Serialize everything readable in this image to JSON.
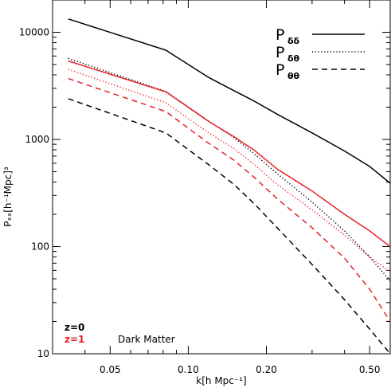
{
  "chart_data": {
    "type": "line",
    "title": "",
    "xlabel": "k[h Mpc⁻¹]",
    "ylabel": "Pₓₓ[h⁻¹Mpc]³",
    "xscale": "log",
    "yscale": "log",
    "xlim": [
      0.03,
      0.6
    ],
    "ylim": [
      10,
      20000
    ],
    "xticks": [
      0.05,
      0.1,
      0.2,
      0.5
    ],
    "xtick_labels": [
      "0.05",
      "0.10",
      "0.20",
      "0.50"
    ],
    "yticks": [
      10,
      100,
      1000,
      10000
    ],
    "ytick_labels": [
      "10",
      "100",
      "1000",
      "10000"
    ],
    "grid": false,
    "legend": {
      "placement": "top-right",
      "entries": [
        {
          "main": "P",
          "sub": "δδ",
          "style": "solid"
        },
        {
          "main": "P",
          "sub": "δθ",
          "style": "dotted"
        },
        {
          "main": "P",
          "sub": "θθ",
          "style": "dashed"
        }
      ]
    },
    "annotations": [
      {
        "text": "z=0",
        "color": "#000000"
      },
      {
        "text": "z=1",
        "color": "#e8202a"
      },
      {
        "text": "Dark Matter",
        "color": "#000000"
      }
    ],
    "series": [
      {
        "redshift": "z=0",
        "quantity": "dd",
        "style": "solid",
        "color": "#000000",
        "x": [
          0.0345,
          0.082,
          0.12,
          0.15,
          0.18,
          0.22,
          0.3,
          0.4,
          0.5,
          0.6
        ],
        "y": [
          13300,
          6800,
          3780,
          2850,
          2270,
          1720,
          1150,
          780,
          560,
          390
        ]
      },
      {
        "redshift": "z=0",
        "quantity": "dt",
        "style": "dotted",
        "color": "#000000",
        "x": [
          0.0345,
          0.082,
          0.12,
          0.15,
          0.18,
          0.22,
          0.3,
          0.4,
          0.5,
          0.6
        ],
        "y": [
          5700,
          2800,
          1480,
          1040,
          730,
          480,
          260,
          140,
          80,
          48
        ]
      },
      {
        "redshift": "z=0",
        "quantity": "tt",
        "style": "dashed",
        "color": "#000000",
        "x": [
          0.0345,
          0.082,
          0.12,
          0.15,
          0.18,
          0.22,
          0.3,
          0.4,
          0.5,
          0.6
        ],
        "y": [
          2400,
          1150,
          580,
          380,
          250,
          150,
          68,
          32,
          17,
          10
        ]
      },
      {
        "redshift": "z=1",
        "quantity": "dd",
        "style": "solid",
        "color": "#e8202a",
        "x": [
          0.0345,
          0.082,
          0.12,
          0.15,
          0.18,
          0.22,
          0.3,
          0.4,
          0.5,
          0.6
        ],
        "y": [
          5400,
          2780,
          1470,
          1060,
          790,
          530,
          330,
          200,
          140,
          100
        ]
      },
      {
        "redshift": "z=1",
        "quantity": "dt",
        "style": "dotted",
        "color": "#e8202a",
        "x": [
          0.0345,
          0.082,
          0.12,
          0.15,
          0.18,
          0.22,
          0.3,
          0.4,
          0.5,
          0.6
        ],
        "y": [
          4500,
          2200,
          1150,
          820,
          580,
          380,
          220,
          128,
          80,
          58
        ]
      },
      {
        "redshift": "z=1",
        "quantity": "tt",
        "style": "dashed",
        "color": "#e8202a",
        "x": [
          0.0345,
          0.082,
          0.12,
          0.15,
          0.18,
          0.22,
          0.3,
          0.4,
          0.5,
          0.6
        ],
        "y": [
          3700,
          1820,
          920,
          640,
          440,
          280,
          150,
          78,
          40,
          20
        ]
      }
    ]
  }
}
